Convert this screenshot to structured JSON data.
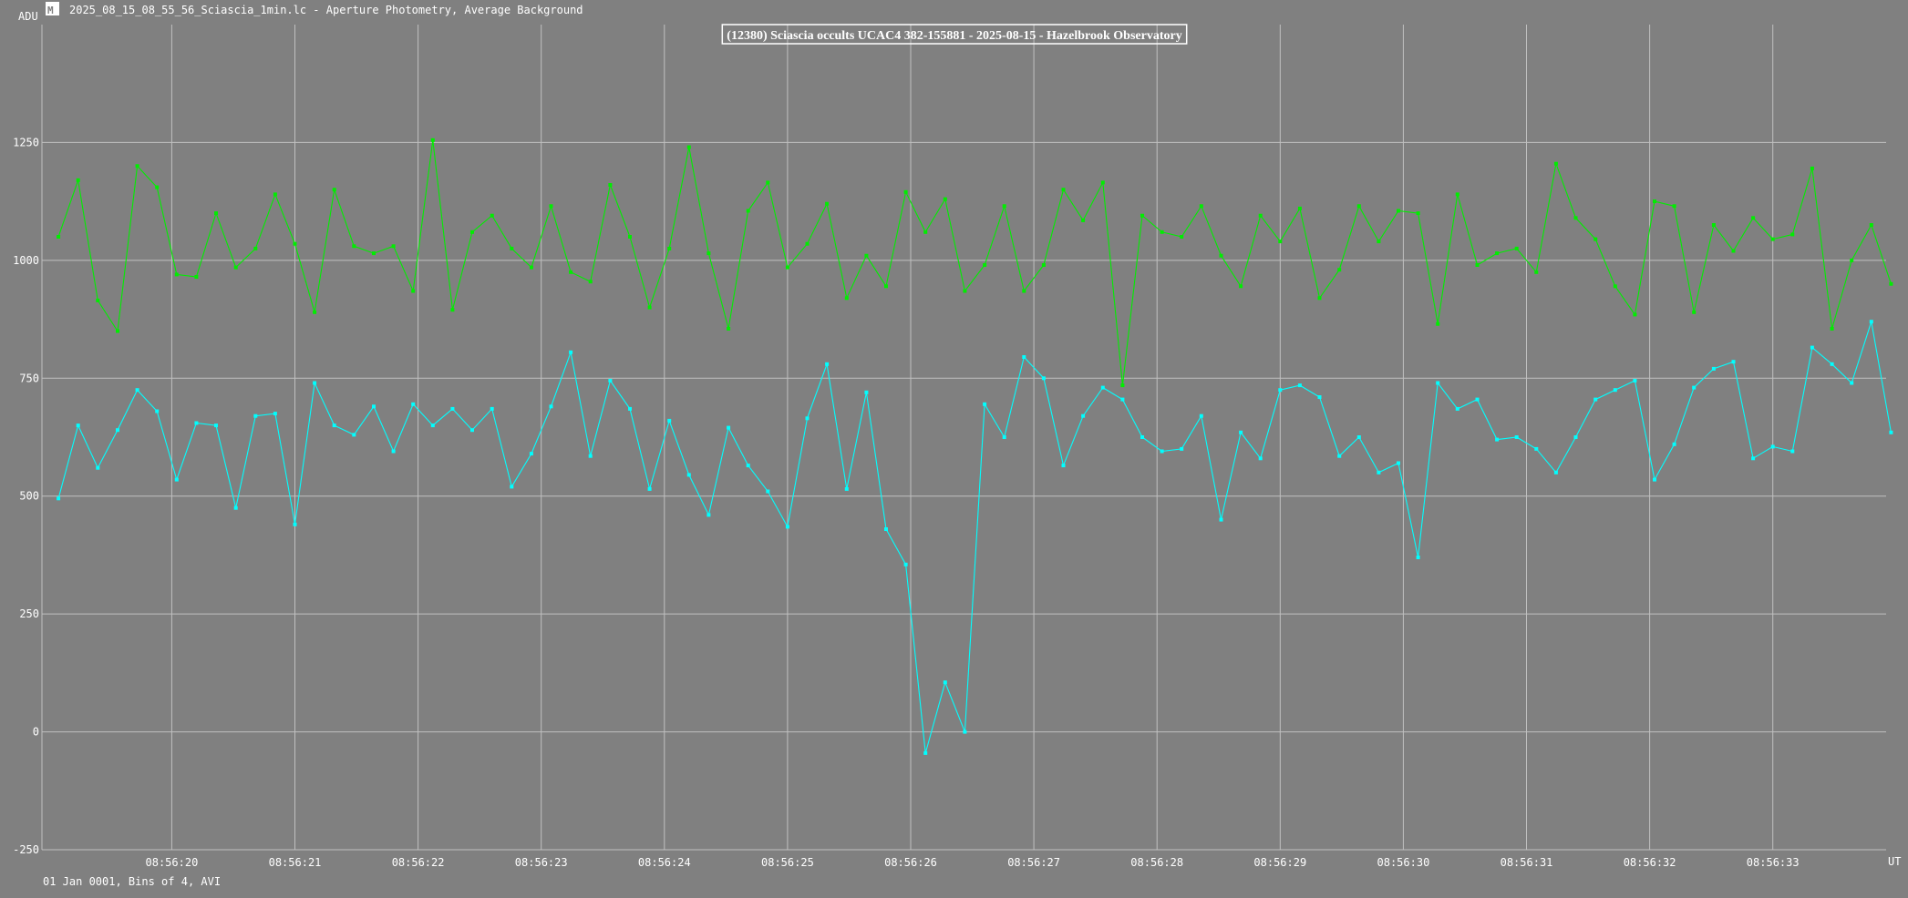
{
  "header": {
    "icon": "app-logo-icon",
    "window_title": "2025_08_15_08_55_56_Sciascia_1min.lc - Aperture Photometry, Average Background"
  },
  "footer": {
    "info": "01 Jan 0001, Bins of 4, AVI"
  },
  "colors": {
    "background": "#808080",
    "grid": "#c0c0c0",
    "text": "#ffffff",
    "target": "#00ffff",
    "comparison": "#00ee00"
  },
  "chart_data": {
    "type": "line",
    "title": "(12380) Sciascia occults UCAC4 382-155881 - 2025-08-15 - Hazelbrook Observatory",
    "ylabel": "ADU",
    "xlabel": "UT",
    "ylim": [
      -250,
      1500
    ],
    "xlim": [
      19.02,
      33.92
    ],
    "x_unit": "seconds after 08:56:00 UT",
    "yticks": [
      -250,
      0,
      250,
      500,
      750,
      1000,
      1250
    ],
    "xticks": [
      {
        "value": 20,
        "label": "08:56:20"
      },
      {
        "value": 21,
        "label": "08:56:21"
      },
      {
        "value": 22,
        "label": "08:56:22"
      },
      {
        "value": 23,
        "label": "08:56:23"
      },
      {
        "value": 24,
        "label": "08:56:24"
      },
      {
        "value": 25,
        "label": "08:56:25"
      },
      {
        "value": 26,
        "label": "08:56:26"
      },
      {
        "value": 27,
        "label": "08:56:27"
      },
      {
        "value": 28,
        "label": "08:56:28"
      },
      {
        "value": 29,
        "label": "08:56:29"
      },
      {
        "value": 30,
        "label": "08:56:30"
      },
      {
        "value": 31,
        "label": "08:56:31"
      },
      {
        "value": 32,
        "label": "08:56:32"
      },
      {
        "value": 33,
        "label": "08:56:33"
      }
    ],
    "grid": true,
    "x_start": 19.08,
    "x_step": 0.16,
    "series": [
      {
        "name": "",
        "color": "#00ee00",
        "values": [
          1050,
          1170,
          915,
          850,
          1200,
          1155,
          970,
          965,
          1100,
          985,
          1025,
          1140,
          1035,
          890,
          1150,
          1030,
          1015,
          1030,
          935,
          1255,
          895,
          1060,
          1095,
          1025,
          985,
          1115,
          975,
          955,
          1160,
          1050,
          900,
          1025,
          1240,
          1015,
          855,
          1105,
          1165,
          985,
          1035,
          1120,
          920,
          1010,
          945,
          1145,
          1060,
          1130,
          935,
          990,
          1115,
          935,
          990,
          1150,
          1085,
          1165,
          735,
          1095,
          1060,
          1050,
          1115,
          1010,
          945,
          1095,
          1040,
          1110,
          920,
          980,
          1115,
          1040,
          1105,
          1100,
          865,
          1140,
          990,
          1015,
          1025,
          975,
          1205,
          1090,
          1045,
          945,
          885,
          1125,
          1115,
          890,
          1075,
          1020,
          1090,
          1045,
          1055,
          1195,
          855,
          1000,
          1075,
          950
        ]
      },
      {
        "name": "",
        "color": "#00ffff",
        "values": [
          495,
          650,
          560,
          640,
          725,
          680,
          535,
          655,
          650,
          475,
          670,
          675,
          440,
          740,
          650,
          630,
          690,
          595,
          695,
          650,
          685,
          640,
          685,
          520,
          590,
          690,
          805,
          585,
          745,
          685,
          515,
          660,
          545,
          460,
          645,
          565,
          510,
          435,
          665,
          780,
          515,
          720,
          430,
          355,
          -45,
          105,
          0,
          695,
          625,
          795,
          750,
          565,
          670,
          730,
          705,
          625,
          595,
          600,
          670,
          450,
          635,
          580,
          725,
          735,
          710,
          585,
          625,
          550,
          570,
          370,
          740,
          685,
          705,
          620,
          625,
          600,
          550,
          625,
          705,
          725,
          745,
          535,
          610,
          730,
          770,
          785,
          580,
          605,
          595,
          815,
          780,
          740,
          870,
          635
        ]
      }
    ]
  }
}
